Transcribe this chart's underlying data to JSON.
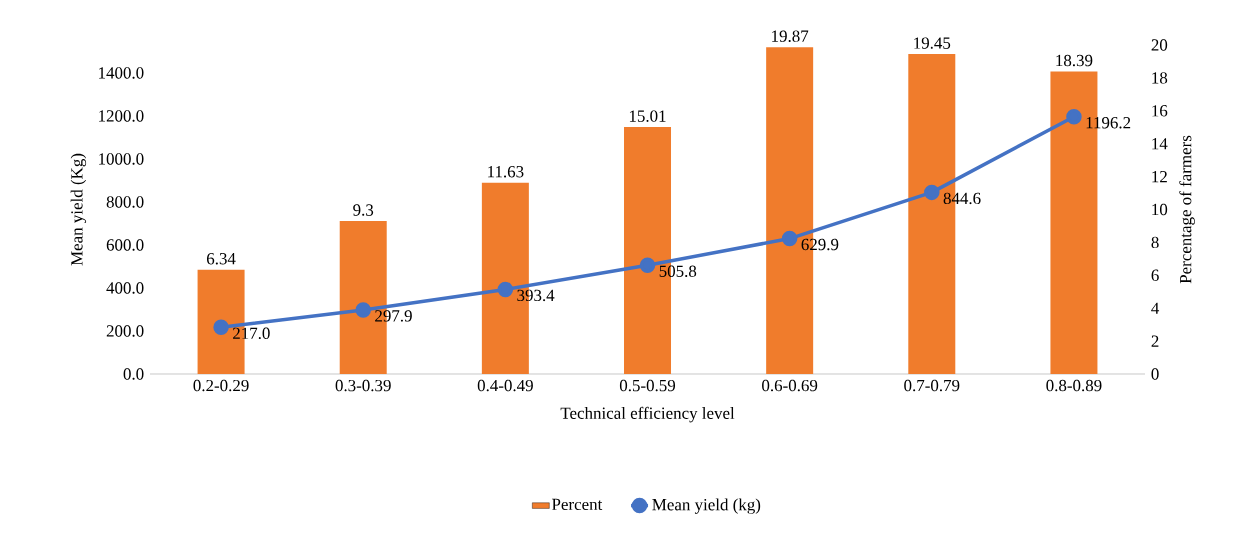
{
  "chart_data": {
    "type": "bar",
    "xlabel": "Technical efficiency level",
    "ylabel": "Mean yield (Kg)",
    "y2label": "Percentage of farmers",
    "categories": [
      "0.2-0.29",
      "0.3-0.39",
      "0.4-0.49",
      "0.5-0.59",
      "0.6-0.69",
      "0.7-0.79",
      "0.8-0.89"
    ],
    "series": [
      {
        "name": "Percent",
        "axis": "y2",
        "color": "#f07c2c",
        "values": [
          6.34,
          9.3,
          11.63,
          15.01,
          19.87,
          19.45,
          18.39
        ],
        "value_labels": [
          "6.34",
          "9.3",
          "11.63",
          "15.01",
          "19.87",
          "19.45",
          "18.39"
        ]
      },
      {
        "name": "Mean yield (kg)",
        "type": "line",
        "axis": "y",
        "color": "#4472c4",
        "marker": "circle",
        "values": [
          217.0,
          297.9,
          393.4,
          505.8,
          629.9,
          844.6,
          1196.2
        ],
        "value_labels": [
          "217.0",
          "297.9",
          "393.4",
          "505.8",
          "629.9",
          "844.6",
          "1196.2"
        ]
      }
    ],
    "ylim": [
      0,
      1530
    ],
    "yticks": [
      {
        "value": 0,
        "label": "0.0"
      },
      {
        "value": 200,
        "label": "200.0"
      },
      {
        "value": 400,
        "label": "400.0"
      },
      {
        "value": 600,
        "label": "600.0"
      },
      {
        "value": 800,
        "label": "800.0"
      },
      {
        "value": 1000,
        "label": "1000.0"
      },
      {
        "value": 1200,
        "label": "1200.0"
      },
      {
        "value": 1400,
        "label": "1400.0"
      }
    ],
    "y2lim": [
      0,
      20
    ],
    "y2ticks": [
      0,
      2,
      4,
      6,
      8,
      10,
      12,
      14,
      16,
      18,
      20
    ],
    "legend": "bottom",
    "grid": false
  }
}
